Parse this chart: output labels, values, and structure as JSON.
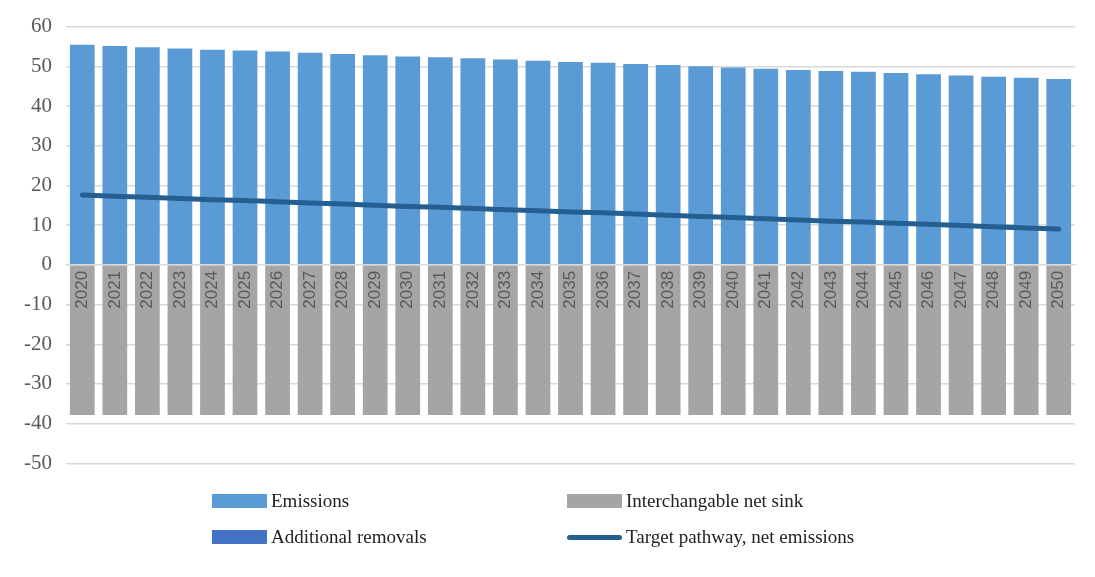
{
  "chart_data": {
    "type": "bar",
    "stacked": true,
    "grid": "y",
    "legend": "bottom",
    "marker": "none",
    "line_style": "solid",
    "categories": [
      "2020",
      "2021",
      "2022",
      "2023",
      "2024",
      "2025",
      "2026",
      "2027",
      "2028",
      "2029",
      "2030",
      "2031",
      "2032",
      "2033",
      "2034",
      "2035",
      "2036",
      "2037",
      "2038",
      "2039",
      "2040",
      "2041",
      "2042",
      "2043",
      "2044",
      "2045",
      "2046",
      "2047",
      "2048",
      "2049",
      "2050"
    ],
    "ylim": [
      -50,
      60
    ],
    "yticks": [
      -50,
      -40,
      -30,
      -20,
      -10,
      0,
      10,
      20,
      30,
      40,
      50,
      60
    ],
    "series": [
      {
        "name": "Emissions",
        "color": "#5b9bd5",
        "values": [
          55.4,
          55.1,
          54.8,
          54.5,
          54.2,
          54.0,
          53.7,
          53.4,
          53.1,
          52.8,
          52.5,
          52.3,
          52.0,
          51.7,
          51.4,
          51.1,
          50.9,
          50.6,
          50.3,
          50.0,
          49.7,
          49.4,
          49.1,
          48.8,
          48.6,
          48.3,
          48.0,
          47.7,
          47.4,
          47.1,
          46.8
        ]
      },
      {
        "name": "Interchangable net sink",
        "color": "#a5a5a5",
        "values": [
          -37.8,
          -37.8,
          -37.8,
          -37.8,
          -37.8,
          -37.8,
          -37.8,
          -37.8,
          -37.8,
          -37.8,
          -37.8,
          -37.8,
          -37.8,
          -37.8,
          -37.8,
          -37.8,
          -37.8,
          -37.8,
          -37.8,
          -37.8,
          -37.8,
          -37.8,
          -37.8,
          -37.8,
          -37.8,
          -37.8,
          -37.8,
          -37.8,
          -37.8,
          -37.8,
          -37.8
        ]
      },
      {
        "name": "Additional removals",
        "color": "#4472c4",
        "values": [
          0,
          0,
          0,
          0,
          0,
          0,
          0,
          0,
          0,
          0,
          0,
          0,
          0,
          0,
          0,
          0,
          0,
          0,
          0,
          0,
          0,
          0,
          0,
          0,
          0,
          0,
          0,
          0,
          0,
          0,
          0
        ]
      },
      {
        "name": "Target pathway, net emissions",
        "type": "line",
        "color": "#255e91",
        "values": [
          17.6,
          17.3,
          17.0,
          16.7,
          16.4,
          16.2,
          15.9,
          15.6,
          15.3,
          15.0,
          14.7,
          14.5,
          14.2,
          13.9,
          13.6,
          13.3,
          13.1,
          12.8,
          12.5,
          12.2,
          11.9,
          11.6,
          11.3,
          11.0,
          10.8,
          10.5,
          10.2,
          9.9,
          9.6,
          9.3,
          9.0
        ]
      }
    ]
  }
}
